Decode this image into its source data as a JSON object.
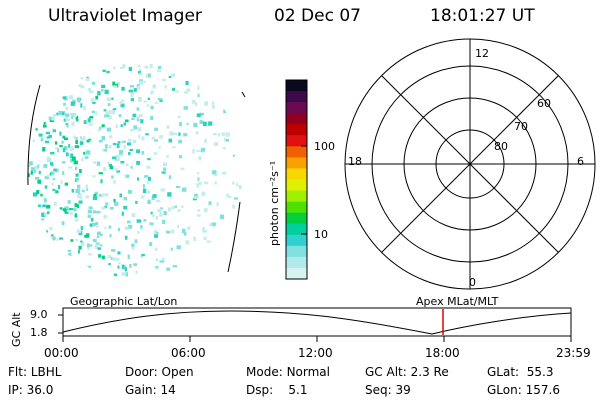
{
  "header": {
    "title": "Ultraviolet Imager",
    "date": "02 Dec 07",
    "time": "18:01:27 UT"
  },
  "colorbar": {
    "label": "photon cm⁻²s⁻¹",
    "ticks": [
      "100",
      "10"
    ],
    "colors": [
      "#0a0a1e",
      "#3a0a4a",
      "#6a0a50",
      "#900020",
      "#c00000",
      "#e01010",
      "#f06000",
      "#f8a000",
      "#f8d800",
      "#e0f000",
      "#a0f000",
      "#50e000",
      "#00d040",
      "#00d0a0",
      "#30d0d0",
      "#80e0e0",
      "#b0eaea",
      "#d8f2f2"
    ]
  },
  "polar": {
    "lat_labels": [
      "80",
      "70",
      "60"
    ],
    "mlt_labels": {
      "top": "12",
      "left": "18",
      "right": "6",
      "bottom": "0"
    }
  },
  "altitude_plot": {
    "left_label": "Geographic Lat/Lon",
    "right_label": "Apex MLat/MLT",
    "axis_label": "GC Alt",
    "y_ticks": [
      "9.0",
      "1.8"
    ],
    "x_ticks": [
      "00:00",
      "06:00",
      "12:00",
      "18:00",
      "23:59"
    ],
    "marker_color": "#e00000"
  },
  "status": {
    "row1": [
      {
        "label": "Flt:",
        "value": "LBHL"
      },
      {
        "label": "Door:",
        "value": "Open"
      },
      {
        "label": "Mode:",
        "value": "Normal"
      },
      {
        "label": "GC Alt:",
        "value": "2.3 Re"
      },
      {
        "label": "GLat:",
        "value": "55.3"
      }
    ],
    "row2": [
      {
        "label": "IP:",
        "value": "36.0"
      },
      {
        "label": "Gain:",
        "value": "14"
      },
      {
        "label": "Dsp:",
        "value": "5.1"
      },
      {
        "label": "Seq:",
        "value": "39"
      },
      {
        "label": "GLon:",
        "value": "157.6"
      }
    ]
  }
}
